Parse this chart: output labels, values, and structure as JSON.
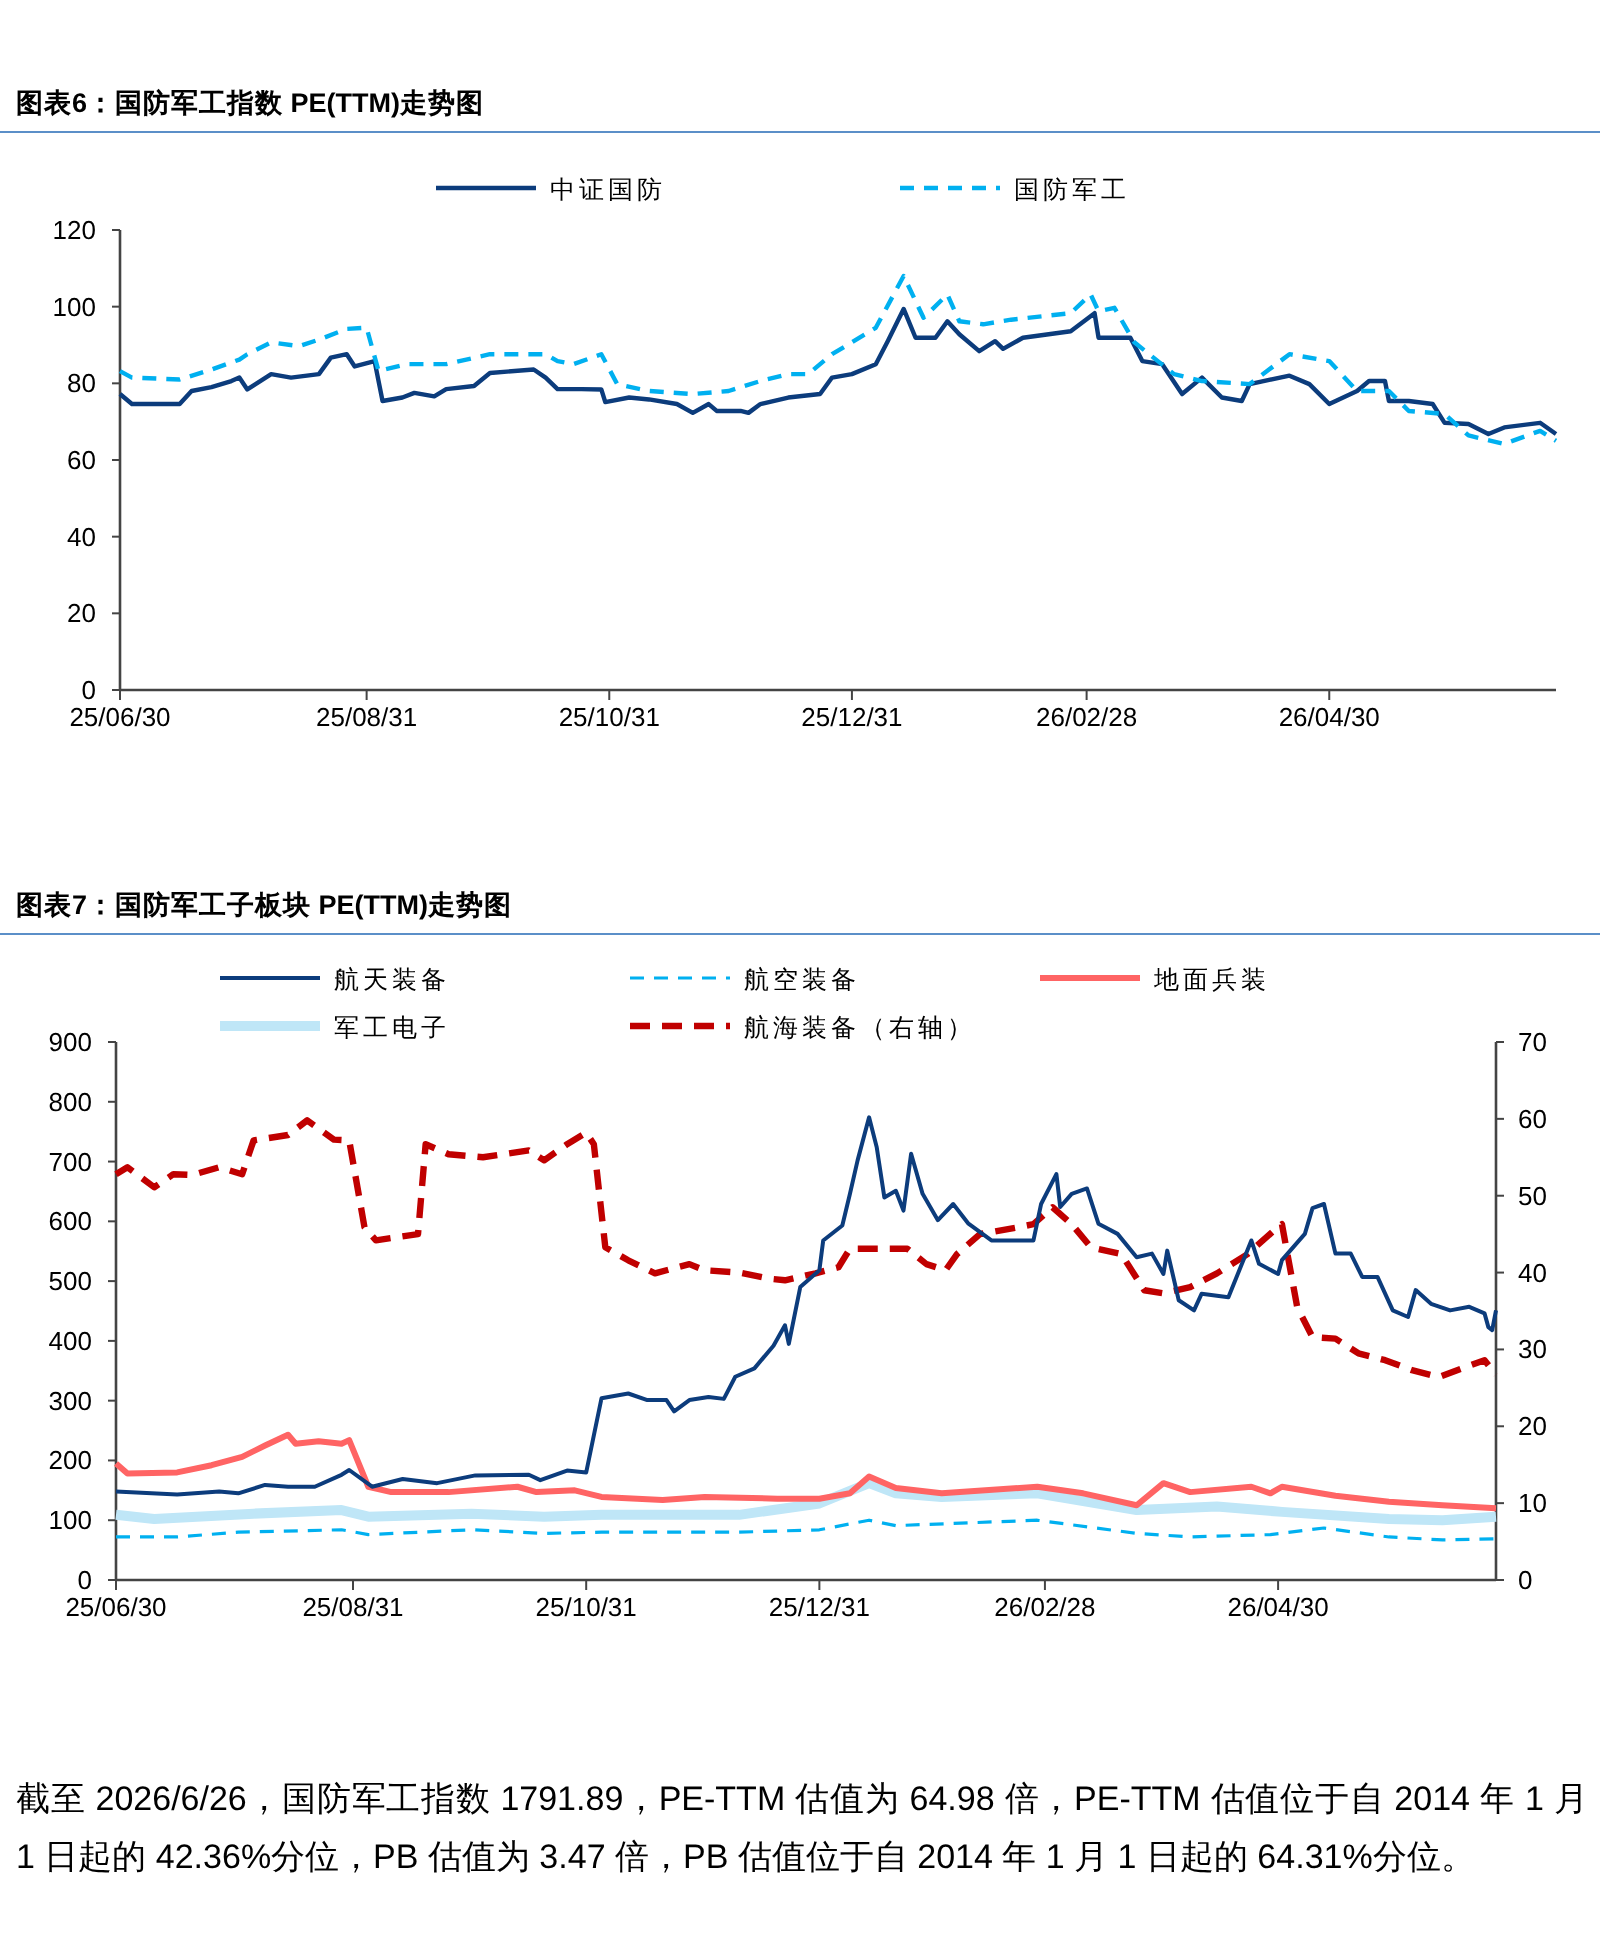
{
  "chart_data": [
    {
      "type": "line",
      "title": "图表6：国防军工指数 PE(TTM)走势图",
      "legend": "top",
      "grid": false,
      "xlim": [
        "2025-06-30",
        "2026-06-26"
      ],
      "xticks": [
        {
          "value": "2025-06-30",
          "label": "25/06/30"
        },
        {
          "value": "2025-08-31",
          "label": "25/08/31"
        },
        {
          "value": "2025-10-31",
          "label": "25/10/31"
        },
        {
          "value": "2025-12-31",
          "label": "25/12/31"
        },
        {
          "value": "2026-02-28",
          "label": "26/02/28"
        },
        {
          "value": "2026-04-30",
          "label": "26/04/30"
        }
      ],
      "ylim": [
        0,
        120
      ],
      "yticks": [
        0,
        20,
        40,
        60,
        80,
        100,
        120
      ],
      "series": [
        {
          "name": "中证国防",
          "color": "#0c3c7c",
          "line_style": "solid",
          "x": [
            "2025-06-30",
            "2025-07-03",
            "2025-07-10",
            "2025-07-15",
            "2025-07-18",
            "2025-07-23",
            "2025-07-28",
            "2025-07-30",
            "2025-08-01",
            "2025-08-07",
            "2025-08-12",
            "2025-08-19",
            "2025-08-22",
            "2025-08-26",
            "2025-08-28",
            "2025-09-02",
            "2025-09-04",
            "2025-09-09",
            "2025-09-12",
            "2025-09-17",
            "2025-09-20",
            "2025-09-27",
            "2025-10-01",
            "2025-10-12",
            "2025-10-15",
            "2025-10-18",
            "2025-10-24",
            "2025-10-29",
            "2025-10-30",
            "2025-11-05",
            "2025-11-10",
            "2025-11-17",
            "2025-11-21",
            "2025-11-25",
            "2025-11-27",
            "2025-12-03",
            "2025-12-05",
            "2025-12-08",
            "2025-12-15",
            "2025-12-23",
            "2025-12-26",
            "2025-12-31",
            "2026-01-06",
            "2026-01-09",
            "2026-01-13",
            "2026-01-16",
            "2026-01-21",
            "2026-01-24",
            "2026-01-27",
            "2026-02-01",
            "2026-02-05",
            "2026-02-07",
            "2026-02-12",
            "2026-02-24",
            "2026-03-02",
            "2026-03-03",
            "2026-03-11",
            "2026-03-14",
            "2026-03-19",
            "2026-03-24",
            "2026-03-29",
            "2026-04-03",
            "2026-04-08",
            "2026-04-10",
            "2026-04-20",
            "2026-04-25",
            "2026-04-30",
            "2026-05-07",
            "2026-05-10",
            "2026-05-14",
            "2026-05-15",
            "2026-05-20",
            "2026-05-26",
            "2026-05-29",
            "2026-06-04",
            "2026-06-09",
            "2026-06-13",
            "2026-06-22",
            "2026-06-26"
          ],
          "values": [
            77.2,
            74.6,
            74.6,
            74.6,
            78,
            79,
            80.6,
            81.5,
            78.4,
            82.4,
            81.5,
            82.4,
            86.7,
            87.6,
            84.4,
            85.8,
            75.4,
            76.3,
            77.5,
            76.6,
            78.5,
            79.3,
            82.7,
            83.6,
            81.5,
            78.5,
            78.5,
            78.4,
            75.1,
            76.3,
            75.8,
            74.6,
            72.3,
            74.6,
            72.8,
            72.8,
            72.3,
            74.6,
            76.3,
            77.2,
            81.5,
            82.4,
            85,
            91,
            99.4,
            91.9,
            91.9,
            96.2,
            92.8,
            88.4,
            91,
            89,
            91.9,
            93.6,
            98.3,
            91.9,
            91.9,
            85.8,
            85,
            77.2,
            81.5,
            76.3,
            75.4,
            79.8,
            82,
            79.8,
            74.6,
            78,
            80.6,
            80.6,
            75.4,
            75.4,
            74.6,
            69.7,
            69.4,
            66.8,
            68.5,
            69.7,
            66.8
          ]
        },
        {
          "name": "国防军工",
          "color": "#00b0f0",
          "line_style": "dashed",
          "x": [
            "2025-06-30",
            "2025-07-03",
            "2025-07-15",
            "2025-07-23",
            "2025-07-30",
            "2025-08-01",
            "2025-08-07",
            "2025-08-14",
            "2025-08-19",
            "2025-08-26",
            "2025-08-31",
            "2025-09-03",
            "2025-09-10",
            "2025-09-20",
            "2025-10-01",
            "2025-10-15",
            "2025-10-18",
            "2025-10-22",
            "2025-10-29",
            "2025-11-02",
            "2025-11-10",
            "2025-11-21",
            "2025-11-30",
            "2025-12-08",
            "2025-12-15",
            "2025-12-20",
            "2025-12-26",
            "2026-01-06",
            "2026-01-13",
            "2026-01-18",
            "2026-01-24",
            "2026-01-27",
            "2026-02-02",
            "2026-02-09",
            "2026-02-24",
            "2026-03-01",
            "2026-03-03",
            "2026-03-07",
            "2026-03-12",
            "2026-03-22",
            "2026-03-29",
            "2026-04-10",
            "2026-04-20",
            "2026-04-30",
            "2026-05-07",
            "2026-05-15",
            "2026-05-20",
            "2026-05-29",
            "2026-06-04",
            "2026-06-13",
            "2026-06-22",
            "2026-06-26"
          ],
          "values": [
            83.2,
            81.5,
            81,
            83.6,
            86.2,
            87.6,
            90.7,
            89.7,
            91.4,
            94.2,
            94.5,
            83.2,
            85,
            85,
            87.6,
            87.6,
            85.8,
            85,
            87.6,
            79.8,
            78,
            77.2,
            78,
            80.6,
            82.4,
            82.4,
            87.6,
            94.5,
            108,
            97.1,
            103.2,
            96.2,
            95.4,
            96.6,
            98.3,
            103.2,
            98.8,
            99.7,
            90.7,
            82.4,
            80.6,
            79.8,
            87.6,
            85.8,
            78,
            78,
            72.8,
            72,
            66.4,
            64.2,
            67.6,
            65
          ]
        }
      ]
    },
    {
      "type": "line",
      "title": "图表7：国防军工子板块 PE(TTM)走势图",
      "legend": "top",
      "grid": false,
      "xlim": [
        "2025-06-30",
        "2026-06-26"
      ],
      "xticks": [
        {
          "value": "2025-06-30",
          "label": "25/06/30"
        },
        {
          "value": "2025-08-31",
          "label": "25/08/31"
        },
        {
          "value": "2025-10-31",
          "label": "25/10/31"
        },
        {
          "value": "2025-12-31",
          "label": "25/12/31"
        },
        {
          "value": "2026-02-28",
          "label": "26/02/28"
        },
        {
          "value": "2026-04-30",
          "label": "26/04/30"
        }
      ],
      "ylim": [
        0,
        900
      ],
      "yticks": [
        0,
        100,
        200,
        300,
        400,
        500,
        600,
        700,
        800,
        900
      ],
      "y2lim": [
        0,
        70
      ],
      "y2ticks": [
        0,
        10,
        20,
        30,
        40,
        50,
        60,
        70
      ],
      "annotations": [
        "截至 2026/6/26，国防军工指数 1791.89，PE-TTM 估值为 64.98 倍，PE-TTM 估值位于自 2014 年 1 月 1 日起的 42.36%分位，PB 估值为 3.47 倍，PB 估值位于自 2014 年 1 月 1 日起的 64.31%分位。"
      ],
      "series": [
        {
          "name": "航天装备",
          "color": "#0c3c7c",
          "line_style": "solid",
          "x": [
            "2025-06-30",
            "2025-07-16",
            "2025-07-27",
            "2025-08-01",
            "2025-08-08",
            "2025-08-14",
            "2025-08-21",
            "2025-08-28",
            "2025-08-30",
            "2025-09-05",
            "2025-09-13",
            "2025-09-22",
            "2025-10-02",
            "2025-10-16",
            "2025-10-19",
            "2025-10-26",
            "2025-10-31",
            "2025-11-04",
            "2025-11-11",
            "2025-11-16",
            "2025-11-21",
            "2025-11-23",
            "2025-11-27",
            "2025-12-02",
            "2025-12-06",
            "2025-12-09",
            "2025-12-14",
            "2025-12-19",
            "2025-12-22",
            "2025-12-23",
            "2025-12-26",
            "2025-12-31",
            "2026-01-01",
            "2026-01-06",
            "2026-01-08",
            "2026-01-10",
            "2026-01-13",
            "2026-01-15",
            "2026-01-17",
            "2026-01-20",
            "2026-01-22",
            "2026-01-24",
            "2026-01-27",
            "2026-01-31",
            "2026-02-04",
            "2026-02-08",
            "2026-02-14",
            "2026-02-25",
            "2026-02-27",
            "2026-03-03",
            "2026-03-04",
            "2026-03-07",
            "2026-03-11",
            "2026-03-14",
            "2026-03-19",
            "2026-03-24",
            "2026-03-28",
            "2026-03-31",
            "2026-04-01",
            "2026-04-04",
            "2026-04-08",
            "2026-04-10",
            "2026-04-17",
            "2026-04-23",
            "2026-04-25",
            "2026-04-30",
            "2026-05-01",
            "2026-05-07",
            "2026-05-09",
            "2026-05-12",
            "2026-05-15",
            "2026-05-19",
            "2026-05-22",
            "2026-05-26",
            "2026-05-30",
            "2026-06-03",
            "2026-06-05",
            "2026-06-09",
            "2026-06-14",
            "2026-06-19",
            "2026-06-23",
            "2026-06-24",
            "2026-06-25",
            "2026-06-26"
          ],
          "values": [
            148,
            143,
            148,
            145,
            159,
            156,
            156,
            176,
            184,
            156,
            169,
            162,
            175,
            176,
            167,
            183,
            180,
            304,
            312,
            301,
            301,
            282,
            301,
            306,
            303,
            340,
            354,
            392,
            426,
            395,
            490,
            518,
            568,
            593,
            646,
            702,
            774,
            724,
            640,
            651,
            618,
            713,
            646,
            602,
            629,
            596,
            568,
            568,
            629,
            679,
            624,
            646,
            655,
            596,
            579,
            540,
            546,
            512,
            551,
            468,
            451,
            479,
            473,
            568,
            529,
            512,
            535,
            579,
            622,
            629,
            546,
            546,
            507,
            507,
            451,
            440,
            485,
            462,
            451,
            457,
            446,
            423,
            418,
            451
          ]
        },
        {
          "name": "航空装备",
          "color": "#00b0f0",
          "line_style": "dashed",
          "x": [
            "2025-06-30",
            "2025-07-16",
            "2025-08-01",
            "2025-08-28",
            "2025-09-04",
            "2025-10-01",
            "2025-10-20",
            "2025-11-04",
            "2025-12-10",
            "2025-12-31",
            "2026-01-13",
            "2026-01-20",
            "2026-02-26",
            "2026-03-24",
            "2026-04-07",
            "2026-04-28",
            "2026-05-12",
            "2026-05-29",
            "2026-06-12",
            "2026-06-26"
          ],
          "values": [
            72,
            72,
            80,
            84,
            76,
            84,
            78,
            80,
            80,
            84,
            100,
            91,
            100,
            78,
            72,
            76,
            87,
            72,
            67,
            69
          ]
        },
        {
          "name": "地面兵装",
          "color": "#ff6464",
          "line_style": "solid",
          "x": [
            "2025-06-30",
            "2025-07-03",
            "2025-07-16",
            "2025-07-25",
            "2025-08-02",
            "2025-08-08",
            "2025-08-14",
            "2025-08-16",
            "2025-08-22",
            "2025-08-28",
            "2025-08-30",
            "2025-09-04",
            "2025-09-10",
            "2025-09-25",
            "2025-10-13",
            "2025-10-18",
            "2025-10-28",
            "2025-11-04",
            "2025-11-20",
            "2025-12-01",
            "2025-12-20",
            "2025-12-31",
            "2026-01-08",
            "2026-01-13",
            "2026-01-20",
            "2026-02-01",
            "2026-02-26",
            "2026-03-10",
            "2026-03-24",
            "2026-03-31",
            "2026-04-07",
            "2026-04-23",
            "2026-04-28",
            "2026-05-01",
            "2026-05-15",
            "2026-05-29",
            "2026-06-12",
            "2026-06-26"
          ],
          "values": [
            195,
            178,
            180,
            192,
            206,
            225,
            243,
            228,
            232,
            228,
            234,
            156,
            147,
            147,
            156,
            147,
            150,
            139,
            134,
            139,
            136,
            136,
            145,
            173,
            154,
            145,
            156,
            145,
            125,
            162,
            147,
            156,
            145,
            156,
            141,
            131,
            125,
            120
          ]
        },
        {
          "name": "军工电子",
          "color": "#bfe6f7",
          "line_style": "solid",
          "x": [
            "2025-06-30",
            "2025-07-10",
            "2025-08-05",
            "2025-08-28",
            "2025-09-04",
            "2025-10-01",
            "2025-10-20",
            "2025-11-04",
            "2025-12-10",
            "2025-12-31",
            "2026-01-13",
            "2026-01-20",
            "2026-02-01",
            "2026-02-26",
            "2026-03-24",
            "2026-04-14",
            "2026-05-01",
            "2026-05-29",
            "2026-06-12",
            "2026-06-26"
          ],
          "values": [
            109,
            102,
            111,
            117,
            106,
            111,
            106,
            109,
            109,
            128,
            162,
            145,
            139,
            145,
            117,
            123,
            114,
            102,
            100,
            106
          ]
        },
        {
          "name": "航海装备（右轴）",
          "color": "#c00000",
          "line_style": "dashed",
          "axis": "y2",
          "x": [
            "2025-06-30",
            "2025-07-03",
            "2025-07-10",
            "2025-07-15",
            "2025-07-20",
            "2025-07-27",
            "2025-08-02",
            "2025-08-05",
            "2025-08-14",
            "2025-08-19",
            "2025-08-26",
            "2025-08-30",
            "2025-09-03",
            "2025-09-06",
            "2025-09-17",
            "2025-09-19",
            "2025-09-25",
            "2025-10-04",
            "2025-10-16",
            "2025-10-20",
            "2025-10-26",
            "2025-10-31",
            "2025-11-02",
            "2025-11-05",
            "2025-11-11",
            "2025-11-18",
            "2025-11-27",
            "2025-12-01",
            "2025-12-10",
            "2025-12-18",
            "2025-12-22",
            "2025-12-30",
            "2026-01-05",
            "2026-01-08",
            "2026-01-15",
            "2026-01-23",
            "2026-01-28",
            "2026-02-02",
            "2026-02-05",
            "2026-02-11",
            "2026-02-21",
            "2026-02-25",
            "2026-03-02",
            "2026-03-07",
            "2026-03-12",
            "2026-03-20",
            "2026-03-26",
            "2026-03-31",
            "2026-04-07",
            "2026-04-14",
            "2026-04-22",
            "2026-04-29",
            "2026-05-01",
            "2026-05-05",
            "2026-05-09",
            "2026-05-15",
            "2026-05-21",
            "2026-05-28",
            "2026-06-04",
            "2026-06-11",
            "2026-06-18",
            "2026-06-23",
            "2026-06-26"
          ],
          "values": [
            52.8,
            53.7,
            51.1,
            52.8,
            52.7,
            53.7,
            52.8,
            57.2,
            57.9,
            59.8,
            57.3,
            57.2,
            45.9,
            44.2,
            45,
            56.7,
            55.4,
            55,
            55.9,
            54.6,
            56.7,
            58.2,
            56.7,
            43.3,
            41.6,
            39.9,
            41.1,
            40.3,
            40,
            39.2,
            39,
            39.9,
            40.7,
            43.1,
            43.1,
            43.1,
            41.1,
            40.3,
            42.4,
            45,
            45.9,
            46.3,
            48.5,
            46.3,
            43.3,
            42.4,
            37.7,
            37.3,
            38.1,
            39.9,
            42.4,
            45.5,
            46.3,
            35.5,
            31.6,
            31.4,
            29.5,
            28.6,
            27.3,
            26.4,
            27.7,
            28.6,
            26.7
          ]
        }
      ]
    }
  ]
}
